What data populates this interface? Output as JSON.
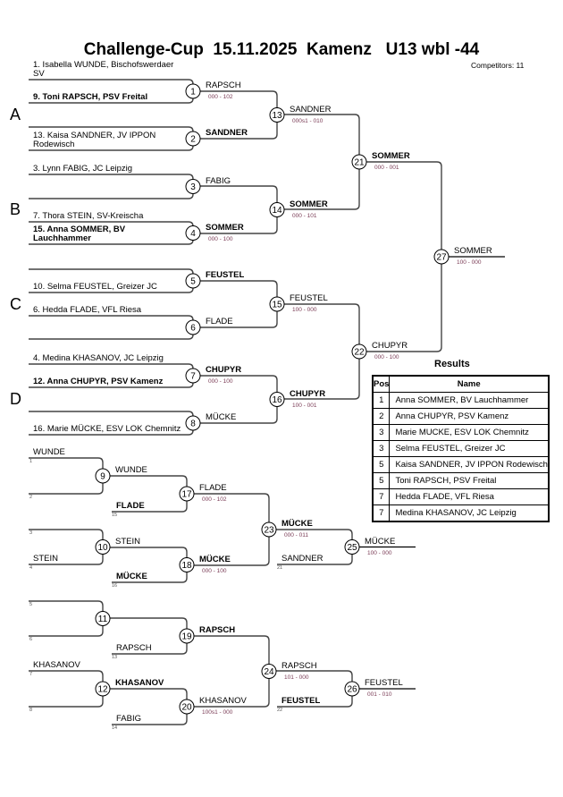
{
  "header": {
    "title": "Challenge-Cup  15.11.2025  Kamenz   U13 wbl -44",
    "competitors": "Competitors: 11"
  },
  "groups": [
    "A",
    "B",
    "C",
    "D"
  ],
  "main": {
    "entries": [
      {
        "text": "1. Isabella WUNDE, Bischofswerdaer SV",
        "bold": false
      },
      {
        "text": "9. Toni RAPSCH, PSV Freital",
        "bold": true
      },
      {
        "text": "",
        "bold": false
      },
      {
        "text": "13. Kaisa SANDNER, JV IPPON Rodewisch",
        "bold": false
      },
      {
        "text": "3. Lynn FABIG, JC Leipzig",
        "bold": false
      },
      {
        "text": "",
        "bold": false
      },
      {
        "text": "7. Thora STEIN, SV-Kreischa",
        "bold": false
      },
      {
        "text": "15. Anna SOMMER, BV Lauchhammer",
        "bold": true
      },
      {
        "text": "",
        "bold": false
      },
      {
        "text": "10. Selma FEUSTEL, Greizer JC",
        "bold": false
      },
      {
        "text": "6. Hedda FLADE, VFL Riesa",
        "bold": false
      },
      {
        "text": "",
        "bold": false
      },
      {
        "text": "4. Medina KHASANOV, JC Leipzig",
        "bold": false
      },
      {
        "text": "12. Anna CHUPYR, PSV Kamenz",
        "bold": true
      },
      {
        "text": "",
        "bold": false
      },
      {
        "text": "16. Marie MÜCKE, ESV LOK Chemnitz",
        "bold": false
      }
    ]
  },
  "repechage": {
    "entries": [
      {
        "text": "WUNDE",
        "src": "1"
      },
      {
        "text": "",
        "src": "2"
      },
      {
        "text": "",
        "src": "3"
      },
      {
        "text": "STEIN",
        "src": "4"
      },
      {
        "text": "",
        "src": "5"
      },
      {
        "text": "",
        "src": "6"
      },
      {
        "text": "KHASANOV",
        "src": "7"
      },
      {
        "text": "",
        "src": "8"
      }
    ],
    "late_entries": {
      "17": {
        "text": "FLADE",
        "bold": true,
        "src": "15"
      },
      "18": {
        "text": "MÜCKE",
        "bold": true,
        "src": "16"
      },
      "19": {
        "text": "RAPSCH",
        "bold": false,
        "src": "13"
      },
      "20": {
        "text": "FABIG",
        "bold": false,
        "src": "14"
      },
      "25": {
        "text": "SANDNER",
        "bold": false,
        "src": "21"
      },
      "26": {
        "text": "FEUSTEL",
        "bold": true,
        "src": "22"
      }
    }
  },
  "matches": {
    "1": {
      "winner": "RAPSCH",
      "bold": false,
      "score": "000 - 102"
    },
    "2": {
      "winner": "SANDNER",
      "bold": true,
      "score": ""
    },
    "3": {
      "winner": "FABIG",
      "bold": false,
      "score": ""
    },
    "4": {
      "winner": "SOMMER",
      "bold": true,
      "score": "000 - 100"
    },
    "5": {
      "winner": "FEUSTEL",
      "bold": true,
      "score": ""
    },
    "6": {
      "winner": "FLADE",
      "bold": false,
      "score": ""
    },
    "7": {
      "winner": "CHUPYR",
      "bold": true,
      "score": "000 - 100"
    },
    "8": {
      "winner": "MÜCKE",
      "bold": false,
      "score": ""
    },
    "13": {
      "winner": "SANDNER",
      "bold": false,
      "score": "000s1 - 010"
    },
    "14": {
      "winner": "SOMMER",
      "bold": true,
      "score": "000 - 101"
    },
    "15": {
      "winner": "FEUSTEL",
      "bold": false,
      "score": "100 - 000"
    },
    "16": {
      "winner": "CHUPYR",
      "bold": true,
      "score": "100 - 001"
    },
    "21": {
      "winner": "SOMMER",
      "bold": true,
      "score": "000 - 001"
    },
    "22": {
      "winner": "CHUPYR",
      "bold": false,
      "score": "000 - 100"
    },
    "27": {
      "winner": "SOMMER",
      "bold": false,
      "score": "100 - 000"
    },
    "9": {
      "winner": "WUNDE",
      "bold": false,
      "score": ""
    },
    "10": {
      "winner": "STEIN",
      "bold": false,
      "score": ""
    },
    "11": {
      "winner": "",
      "bold": false,
      "score": ""
    },
    "12": {
      "winner": "KHASANOV",
      "bold": true,
      "score": ""
    },
    "17": {
      "winner": "FLADE",
      "bold": false,
      "score": "000 - 102"
    },
    "18": {
      "winner": "MÜCKE",
      "bold": true,
      "score": "000 - 100"
    },
    "19": {
      "winner": "RAPSCH",
      "bold": true,
      "score": ""
    },
    "20": {
      "winner": "KHASANOV",
      "bold": false,
      "score": "100s1 - 000"
    },
    "23": {
      "winner": "MÜCKE",
      "bold": true,
      "score": "000 - 011"
    },
    "24": {
      "winner": "RAPSCH",
      "bold": false,
      "score": "101 - 000"
    },
    "25": {
      "winner": "MÜCKE",
      "bold": false,
      "score": "100 - 000"
    },
    "26": {
      "winner": "FEUSTEL",
      "bold": false,
      "score": "001 - 010"
    }
  },
  "results": {
    "title": "Results",
    "headers": [
      "Pos",
      "Name"
    ],
    "rows": [
      {
        "pos": "1",
        "name": "Anna SOMMER, BV Lauchhammer"
      },
      {
        "pos": "2",
        "name": "Anna CHUPYR, PSV Kamenz"
      },
      {
        "pos": "3",
        "name": "Marie MUCKE, ESV LOK Chemnitz"
      },
      {
        "pos": "3",
        "name": "Selma FEUSTEL, Greizer JC"
      },
      {
        "pos": "5",
        "name": "Kaisa SANDNER, JV IPPON Rodewisch"
      },
      {
        "pos": "5",
        "name": "Toni RAPSCH, PSV Freital"
      },
      {
        "pos": "7",
        "name": "Hedda FLADE, VFL Riesa"
      },
      {
        "pos": "7",
        "name": "Medina KHASANOV, JC Leipzig"
      }
    ]
  },
  "colors": {
    "line": "#444444",
    "score_left": "#7a3b55",
    "score_right": "#2a5fa0"
  }
}
